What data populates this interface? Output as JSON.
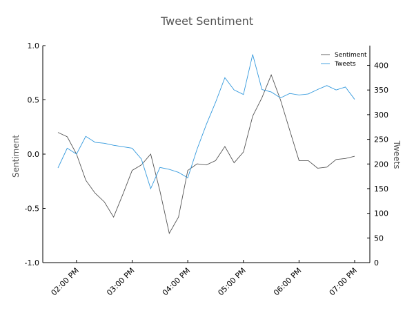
{
  "chart_data": {
    "type": "line",
    "title": "Tweet Sentiment",
    "ylabel": "Sentiment",
    "y2label": "Tweets",
    "ylim": [
      -1.0,
      1.0
    ],
    "y2lim": [
      0,
      440
    ],
    "yticks": [
      "-1.0",
      "-0.5",
      "0.0",
      "0.5",
      "1.0"
    ],
    "y2ticks": [
      "0",
      "50",
      "100",
      "150",
      "200",
      "250",
      "300",
      "350",
      "400"
    ],
    "xticks": [
      "02:00 PM",
      "03:00 PM",
      "04:00 PM",
      "05:00 PM",
      "06:00 PM",
      "07:00 PM"
    ],
    "x": [
      "13:40",
      "13:50",
      "14:00",
      "14:10",
      "14:20",
      "14:30",
      "14:40",
      "14:50",
      "15:00",
      "15:10",
      "15:20",
      "15:30",
      "15:40",
      "15:50",
      "16:00",
      "16:10",
      "16:20",
      "16:30",
      "16:40",
      "16:50",
      "17:00",
      "17:10",
      "17:20",
      "17:30",
      "17:40",
      "17:50",
      "18:00",
      "18:10",
      "18:20",
      "18:30",
      "18:40",
      "18:50",
      "19:00"
    ],
    "grid": false,
    "legend_position": "top-right",
    "series": [
      {
        "name": "Sentiment",
        "axis": "left",
        "color": "#555555",
        "values": [
          0.2,
          0.16,
          0.0,
          -0.24,
          -0.36,
          -0.44,
          -0.58,
          -0.37,
          -0.15,
          -0.1,
          0.0,
          -0.34,
          -0.73,
          -0.58,
          -0.15,
          -0.09,
          -0.1,
          -0.06,
          0.07,
          -0.08,
          0.02,
          0.35,
          0.52,
          0.73,
          0.5,
          0.22,
          -0.06,
          -0.06,
          -0.13,
          -0.12,
          -0.05,
          -0.04,
          -0.02
        ]
      },
      {
        "name": "Tweets",
        "axis": "right",
        "color": "#3399dd",
        "values": [
          192,
          232,
          220,
          256,
          244,
          242,
          238,
          235,
          232,
          210,
          150,
          193,
          189,
          183,
          172,
          230,
          280,
          325,
          375,
          350,
          341,
          422,
          351,
          346,
          334,
          343,
          340,
          342,
          351,
          359,
          350,
          356,
          331
        ]
      }
    ]
  }
}
